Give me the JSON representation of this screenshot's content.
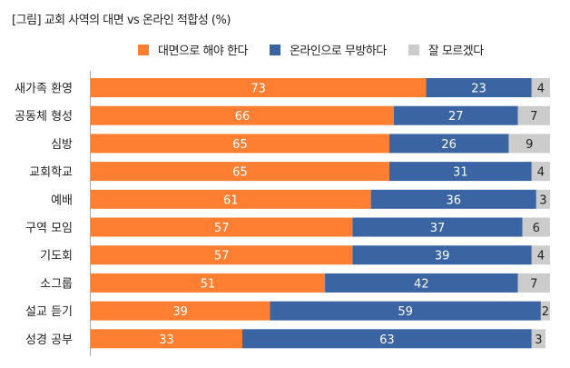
{
  "chart_data": {
    "type": "bar",
    "stacked": true,
    "orientation": "horizontal",
    "title": "[그림] 교회 사역의 대면 vs 온라인 적합성 (%)",
    "xlabel": "",
    "ylabel": "",
    "xlim": [
      0,
      100
    ],
    "legend_position": "top",
    "categories": [
      "새가족 환영",
      "공동체 형성",
      "심방",
      "교회학교",
      "예배",
      "구역 모임",
      "기도회",
      "소그룹",
      "설교 듣기",
      "성경 공부"
    ],
    "series": [
      {
        "name": "대면으로 해야 한다",
        "color": "#FF7F32",
        "values": [
          73,
          66,
          65,
          65,
          61,
          57,
          57,
          51,
          39,
          33
        ]
      },
      {
        "name": "온라인으로 무방하다",
        "color": "#3A65A2",
        "values": [
          23,
          27,
          26,
          31,
          36,
          37,
          39,
          42,
          59,
          63
        ]
      },
      {
        "name": "잘 모르겠다",
        "color": "#CCCCCC",
        "values": [
          4,
          7,
          9,
          4,
          3,
          6,
          4,
          7,
          2,
          3
        ]
      }
    ]
  }
}
